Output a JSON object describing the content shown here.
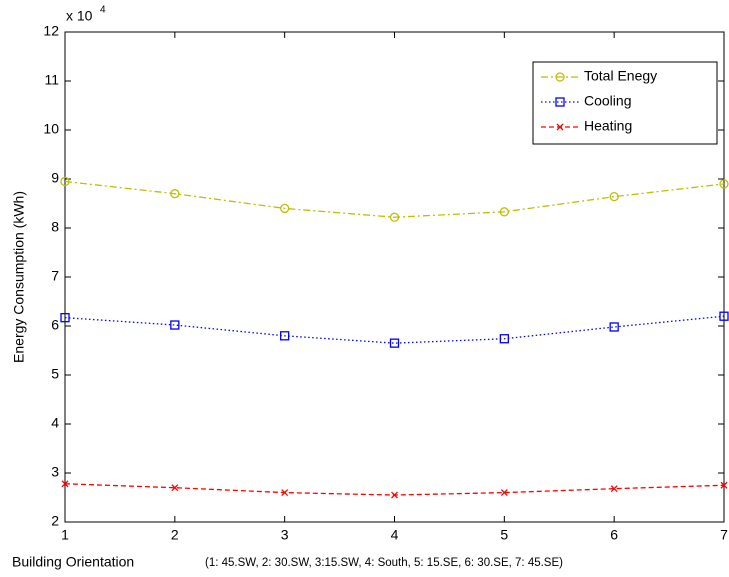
{
  "chart_data": {
    "type": "line",
    "xlabel": "Building Orientation",
    "xlabel_note": "(1: 45.SW,  2: 30.SW,  3:15.SW,  4: South,  5: 15.SE,  6: 30.SE,  7: 45.SE)",
    "ylabel": "Energy Consumption (kWh)",
    "y_multiplier": "x 10",
    "y_multiplier_exponent": "4",
    "x": [
      1,
      2,
      3,
      4,
      5,
      6,
      7
    ],
    "series": [
      {
        "name": "Total Enegy",
        "color": "#bfbf00",
        "marker": "o",
        "linestyle": "dashdot",
        "values": [
          8.95,
          8.7,
          8.4,
          8.22,
          8.33,
          8.64,
          8.9
        ]
      },
      {
        "name": "Cooling",
        "color": "#0000ff",
        "marker": "s",
        "linestyle": "dotted",
        "values": [
          6.17,
          6.02,
          5.8,
          5.65,
          5.74,
          5.98,
          6.2
        ]
      },
      {
        "name": "Heating",
        "color": "#ff0000",
        "marker": "x",
        "linestyle": "dashed",
        "values": [
          2.78,
          2.7,
          2.6,
          2.55,
          2.6,
          2.68,
          2.75
        ]
      }
    ],
    "xlim": [
      1,
      7
    ],
    "xticks": [
      1,
      2,
      3,
      4,
      5,
      6,
      7
    ],
    "ylim": [
      2,
      12
    ],
    "yticks": [
      2,
      3,
      4,
      5,
      6,
      7,
      8,
      9,
      10,
      11,
      12
    ],
    "grid": false,
    "legend": "upper right"
  }
}
